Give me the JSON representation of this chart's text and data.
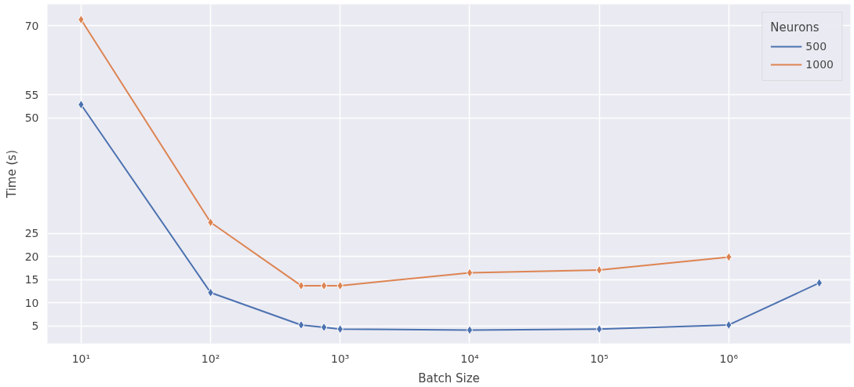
{
  "chart_data": {
    "type": "line",
    "xlabel": "Batch Size",
    "ylabel": "Time (s)",
    "legend_title": "Neurons",
    "x": [
      10,
      100,
      500,
      750,
      1000,
      10000,
      100000,
      1000000,
      5000000
    ],
    "series": [
      {
        "name": "500",
        "color": "#4c72b0",
        "values": [
          52.9,
          12.2,
          5.2,
          4.7,
          4.3,
          4.1,
          4.3,
          5.2,
          14.3
        ]
      },
      {
        "name": "1000",
        "color": "#dd8452",
        "values": [
          71.3,
          27.4,
          13.7,
          13.7,
          13.7,
          16.5,
          17.1,
          19.9,
          null
        ]
      }
    ],
    "log": "x",
    "xlim": [
      5.5,
      8700000
    ],
    "ylim": [
      1.2,
      74.6
    ],
    "xticks": [
      {
        "value": 10,
        "label": "10¹"
      },
      {
        "value": 100,
        "label": "10²"
      },
      {
        "value": 1000,
        "label": "10³"
      },
      {
        "value": 10000,
        "label": "10⁴"
      },
      {
        "value": 100000,
        "label": "10⁵"
      },
      {
        "value": 1000000,
        "label": "10⁶"
      }
    ],
    "yticks": [
      5,
      10,
      15,
      20,
      25,
      50,
      55,
      70
    ],
    "grid": true,
    "legend": "top right",
    "marker": "diamond",
    "line_style": "solid"
  }
}
